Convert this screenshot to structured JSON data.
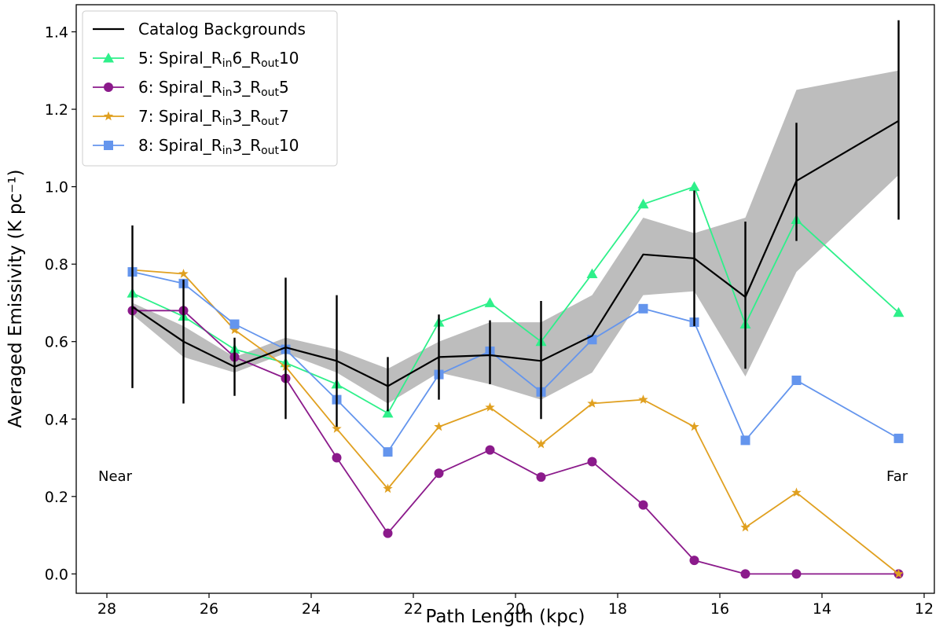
{
  "chart_data": {
    "type": "line",
    "title": "",
    "xlabel": "Path Length (kpc)",
    "ylabel": "Averaged Emissivity (K pc⁻¹)",
    "xlim": [
      28.6,
      11.8
    ],
    "ylim": [
      -0.05,
      1.47
    ],
    "x_inverted": true,
    "grid": false,
    "legend_position": "top-left",
    "xticks": [
      28,
      26,
      24,
      22,
      20,
      18,
      16,
      14,
      12
    ],
    "yticks": [
      0.0,
      0.2,
      0.4,
      0.6,
      0.8,
      1.0,
      1.2,
      1.4
    ],
    "x": [
      27.5,
      26.5,
      25.5,
      24.5,
      23.5,
      22.5,
      21.5,
      20.5,
      19.5,
      18.5,
      17.5,
      16.5,
      15.5,
      14.5,
      12.5
    ],
    "band": {
      "name": "catalog-spread",
      "color": "#bdbdbd",
      "lower": [
        0.67,
        0.56,
        0.52,
        0.57,
        0.52,
        0.44,
        0.52,
        0.49,
        0.45,
        0.52,
        0.72,
        0.73,
        0.51,
        0.78,
        1.03
      ],
      "upper": [
        0.7,
        0.64,
        0.56,
        0.61,
        0.58,
        0.53,
        0.6,
        0.65,
        0.65,
        0.72,
        0.92,
        0.88,
        0.92,
        1.25,
        1.3
      ]
    },
    "series": [
      {
        "name": "Catalog Backgrounds",
        "label_parts": [
          {
            "t": "Catalog Backgrounds"
          }
        ],
        "color": "#000000",
        "marker": "none",
        "values": [
          0.69,
          0.6,
          0.535,
          0.585,
          0.55,
          0.485,
          0.56,
          0.565,
          0.55,
          0.615,
          0.825,
          0.815,
          0.715,
          1.015,
          1.17
        ],
        "error_low": [
          0.48,
          0.44,
          0.46,
          0.4,
          0.38,
          0.42,
          0.45,
          0.49,
          0.4,
          0.615,
          0.825,
          0.64,
          0.53,
          0.86,
          0.915
        ],
        "error_high": [
          0.9,
          0.76,
          0.61,
          0.765,
          0.72,
          0.56,
          0.67,
          0.655,
          0.705,
          0.615,
          0.825,
          0.99,
          0.91,
          1.165,
          1.43
        ]
      },
      {
        "name": "5: Spiral_Rin6_Rout10",
        "label_parts": [
          {
            "t": "5: Spiral_R"
          },
          {
            "t": "in",
            "sub": true
          },
          {
            "t": "6_R"
          },
          {
            "t": "out",
            "sub": true
          },
          {
            "t": "10"
          }
        ],
        "color": "#2ef08a",
        "marker": "triangle",
        "values": [
          0.725,
          0.665,
          0.58,
          0.545,
          0.49,
          0.415,
          0.65,
          0.7,
          0.6,
          0.775,
          0.955,
          1.0,
          0.645,
          0.915,
          0.675
        ]
      },
      {
        "name": "6: Spiral_Rin3_Rout5",
        "label_parts": [
          {
            "t": "6: Spiral_R"
          },
          {
            "t": "in",
            "sub": true
          },
          {
            "t": "3_R"
          },
          {
            "t": "out",
            "sub": true
          },
          {
            "t": "5"
          }
        ],
        "color": "#8b1a8b",
        "marker": "circle",
        "values": [
          0.68,
          0.68,
          0.56,
          0.505,
          0.3,
          0.105,
          0.26,
          0.32,
          0.25,
          0.29,
          0.178,
          0.035,
          0.0,
          0.0,
          0.0
        ]
      },
      {
        "name": "7: Spiral_Rin3_Rout7",
        "label_parts": [
          {
            "t": "7: Spiral_R"
          },
          {
            "t": "in",
            "sub": true
          },
          {
            "t": "3_R"
          },
          {
            "t": "out",
            "sub": true
          },
          {
            "t": "7"
          }
        ],
        "color": "#e0a020",
        "marker": "star",
        "values": [
          0.785,
          0.775,
          0.63,
          0.535,
          0.375,
          0.22,
          0.38,
          0.43,
          0.335,
          0.44,
          0.45,
          0.38,
          0.12,
          0.21,
          0.0
        ]
      },
      {
        "name": "8: Spiral_Rin3_Rout10",
        "label_parts": [
          {
            "t": "8: Spiral_R"
          },
          {
            "t": "in",
            "sub": true
          },
          {
            "t": "3_R"
          },
          {
            "t": "out",
            "sub": true
          },
          {
            "t": "10"
          }
        ],
        "color": "#6495ed",
        "marker": "square",
        "values": [
          0.78,
          0.75,
          0.645,
          0.58,
          0.45,
          0.315,
          0.515,
          0.575,
          0.47,
          0.605,
          0.685,
          0.65,
          0.345,
          0.5,
          0.35
        ]
      }
    ],
    "annotations": {
      "near": "Near",
      "far": "Far"
    }
  }
}
